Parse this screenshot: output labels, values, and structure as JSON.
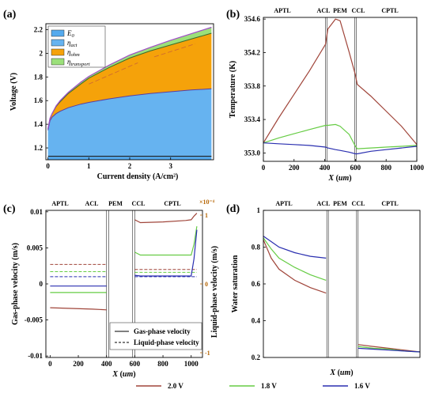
{
  "legend_bottom": [
    {
      "label": "2.0 V",
      "color": "#a0453a"
    },
    {
      "label": "1.8 V",
      "color": "#66cc44"
    },
    {
      "label": "1.6 V",
      "color": "#2a2fb0"
    }
  ],
  "chart_data": [
    {
      "panel": "(a)",
      "type": "area",
      "xlabel": "Current density (A/cm²)",
      "ylabel": "Voltage (V)",
      "xlim": [
        -0.05,
        4.05
      ],
      "ylim": [
        1.1,
        2.25
      ],
      "xticks": [
        "0",
        "1",
        "2",
        "3"
      ],
      "xtick_values": [
        0,
        1,
        2,
        3
      ],
      "yticks": [
        "1.2",
        "1.4",
        "1.6",
        "1.8",
        "2",
        "2.2"
      ],
      "ytick_values": [
        1.2,
        1.4,
        1.6,
        1.8,
        2.0,
        2.2
      ],
      "x": [
        0,
        0.05,
        0.1,
        0.2,
        0.3,
        0.5,
        0.8,
        1.0,
        1.5,
        2.0,
        2.5,
        3.0,
        3.5,
        4.0
      ],
      "baseline": 1.13,
      "series": [
        {
          "name": "E0",
          "label_main": "E",
          "label_sub": "0",
          "color": "#55aaee",
          "values": [
            1.13,
            1.13,
            1.13,
            1.13,
            1.13,
            1.13,
            1.13,
            1.13,
            1.13,
            1.13,
            1.13,
            1.13,
            1.13,
            1.13
          ]
        },
        {
          "name": "ηact",
          "label_main": "η",
          "label_sub": "act",
          "color": "#66b3f0",
          "values": [
            1.35,
            1.43,
            1.46,
            1.49,
            1.51,
            1.54,
            1.57,
            1.585,
            1.615,
            1.64,
            1.66,
            1.675,
            1.69,
            1.7
          ]
        },
        {
          "name": "ηohm",
          "label_main": "η",
          "label_sub": "ohm",
          "color": "#f5a20a",
          "values": [
            1.36,
            1.45,
            1.49,
            1.55,
            1.59,
            1.66,
            1.74,
            1.79,
            1.88,
            1.96,
            2.02,
            2.07,
            2.12,
            2.17
          ]
        },
        {
          "name": "ηtransport",
          "label_main": "η",
          "label_sub": "transport",
          "color": "#9be07a",
          "values": [
            1.36,
            1.45,
            1.49,
            1.555,
            1.6,
            1.67,
            1.755,
            1.805,
            1.9,
            1.985,
            2.05,
            2.11,
            2.165,
            2.22
          ]
        }
      ],
      "legend_position": "top-left"
    },
    {
      "panel": "(b)",
      "type": "line",
      "xlabel_main": "X",
      "xlabel_unit": "um",
      "ylabel": "Temperature (K)",
      "xlim": [
        0,
        1000
      ],
      "ylim": [
        352.9,
        354.62
      ],
      "xticks": [
        "0",
        "200",
        "400",
        "600",
        "800",
        "1000"
      ],
      "xtick_values": [
        0,
        200,
        400,
        600,
        800,
        1000
      ],
      "yticks": [
        "353.0",
        "353.4",
        "353.8",
        "354.2",
        "354.6"
      ],
      "ytick_values": [
        353.0,
        353.4,
        353.8,
        354.2,
        354.6
      ],
      "regions": [
        "APTL",
        "ACL",
        "PEM",
        "CCL",
        "CPTL"
      ],
      "x_pts": [
        0,
        100,
        200,
        300,
        405,
        420,
        470,
        500,
        560,
        600,
        612,
        700,
        800,
        900,
        1000
      ],
      "series": [
        {
          "label": "2.0 V",
          "values": [
            353.12,
            353.42,
            353.7,
            353.98,
            354.3,
            354.48,
            354.6,
            354.58,
            354.2,
            353.93,
            353.82,
            353.68,
            353.5,
            353.32,
            353.1
          ]
        },
        {
          "label": "1.8 V",
          "values": [
            353.12,
            353.18,
            353.23,
            353.28,
            353.33,
            353.33,
            353.34,
            353.32,
            353.22,
            353.08,
            353.05,
            353.06,
            353.07,
            353.08,
            353.09
          ]
        },
        {
          "label": "1.6 V",
          "values": [
            353.12,
            353.11,
            353.1,
            353.09,
            353.07,
            353.06,
            353.04,
            353.03,
            353.01,
            352.99,
            352.99,
            353.02,
            353.04,
            353.06,
            353.08
          ]
        }
      ]
    },
    {
      "panel": "(c)",
      "type": "line",
      "xlabel_main": "X",
      "xlabel_unit": "um",
      "ylabel": "Gas-phase velocity (m/s)",
      "ylabel_right": "Liquid-phase velocity (m/s)",
      "xlim": [
        -30,
        1080
      ],
      "ylim": [
        -0.0102,
        0.0102
      ],
      "xticks": [
        "0",
        "200",
        "400",
        "600",
        "800",
        "1000"
      ],
      "xtick_values": [
        0,
        200,
        400,
        600,
        800,
        1000
      ],
      "yticks": [
        "-0.01",
        "-0.005",
        "0",
        "0.005",
        "0.01"
      ],
      "ytick_values": [
        -0.01,
        -0.005,
        0,
        0.005,
        0.01
      ],
      "yticks_right": [
        "1",
        "0",
        "-1"
      ],
      "ytick_right_values": [
        1,
        0,
        -1
      ],
      "right_multiplier": "×10⁻⁴",
      "regions": [
        "APTL",
        "ACL",
        "PEM",
        "CCL",
        "CPTL"
      ],
      "gas_series": [
        {
          "label": "2.0 V",
          "x": [
            0,
            150,
            300,
            400
          ],
          "values": [
            -0.0033,
            -0.0034,
            -0.0035,
            -0.0036
          ],
          "x2": [
            600,
            640,
            800,
            960,
            1000,
            1020,
            1040
          ],
          "values2": [
            0.0089,
            0.0085,
            0.0086,
            0.0088,
            0.0089,
            0.0094,
            0.0098
          ]
        },
        {
          "label": "1.8 V",
          "x": [
            0,
            150,
            300,
            400
          ],
          "values": [
            -0.0012,
            -0.0012,
            -0.0012,
            -0.0012
          ],
          "x2": [
            600,
            640,
            800,
            960,
            1000,
            1020,
            1040
          ],
          "values2": [
            0.0044,
            0.004,
            0.004,
            0.004,
            0.004,
            0.0055,
            0.008
          ]
        },
        {
          "label": "1.6 V",
          "x": [
            0,
            150,
            300,
            400
          ],
          "values": [
            -0.0003,
            -0.0003,
            -0.0003,
            -0.0003
          ],
          "x2": [
            600,
            640,
            800,
            960,
            1000,
            1020,
            1040
          ],
          "values2": [
            0.0012,
            0.0011,
            0.0011,
            0.0011,
            0.0011,
            0.0035,
            0.0075
          ]
        }
      ],
      "liquid_series": [
        {
          "label": "2.0 V",
          "x": [
            0,
            400
          ],
          "values": [
            0.0027,
            0.0027
          ],
          "x2": [
            600,
            1040
          ],
          "values2": [
            0.002,
            0.002
          ]
        },
        {
          "label": "1.8 V",
          "x": [
            0,
            400
          ],
          "values": [
            0.0017,
            0.0017
          ],
          "x2": [
            600,
            1040
          ],
          "values2": [
            0.0016,
            0.0016
          ]
        },
        {
          "label": "1.6 V",
          "x": [
            0,
            400
          ],
          "values": [
            0.001,
            0.001
          ],
          "x2": [
            600,
            1040
          ],
          "values2": [
            0.001,
            0.001
          ]
        }
      ],
      "legend": [
        "Gas-phase velocity",
        "Liquid-phase velocity"
      ],
      "legend_position": "bottom-right"
    },
    {
      "panel": "(d)",
      "type": "line",
      "xlabel_main": "X",
      "xlabel_unit": "um",
      "ylabel": "Water saturation",
      "xlim": [
        0,
        1000
      ],
      "ylim": [
        0.2,
        1.0
      ],
      "xticks": [],
      "yticks": [
        "0.2",
        "0.4",
        "0.6",
        "0.8",
        "1"
      ],
      "ytick_values": [
        0.2,
        0.4,
        0.6,
        0.8,
        1.0
      ],
      "regions": [
        "APTL",
        "ACL",
        "PEM",
        "CCL",
        "CPTL"
      ],
      "series": [
        {
          "label": "2.0 V",
          "x": [
            0,
            50,
            100,
            200,
            300,
            400
          ],
          "values": [
            0.84,
            0.74,
            0.68,
            0.62,
            0.58,
            0.55
          ],
          "x2": [
            605,
            700,
            800,
            900,
            1000
          ],
          "values2": [
            0.27,
            0.26,
            0.25,
            0.24,
            0.23
          ]
        },
        {
          "label": "1.8 V",
          "x": [
            0,
            50,
            100,
            200,
            300,
            400
          ],
          "values": [
            0.85,
            0.79,
            0.74,
            0.69,
            0.65,
            0.62
          ],
          "x2": [
            605,
            700,
            800,
            900,
            1000
          ],
          "values2": [
            0.26,
            0.25,
            0.245,
            0.235,
            0.23
          ]
        },
        {
          "label": "1.6 V",
          "x": [
            0,
            50,
            100,
            200,
            300,
            400
          ],
          "values": [
            0.86,
            0.83,
            0.8,
            0.77,
            0.75,
            0.74
          ],
          "x2": [
            605,
            700,
            800,
            900,
            1000
          ],
          "values2": [
            0.25,
            0.245,
            0.24,
            0.235,
            0.23
          ]
        }
      ]
    }
  ]
}
